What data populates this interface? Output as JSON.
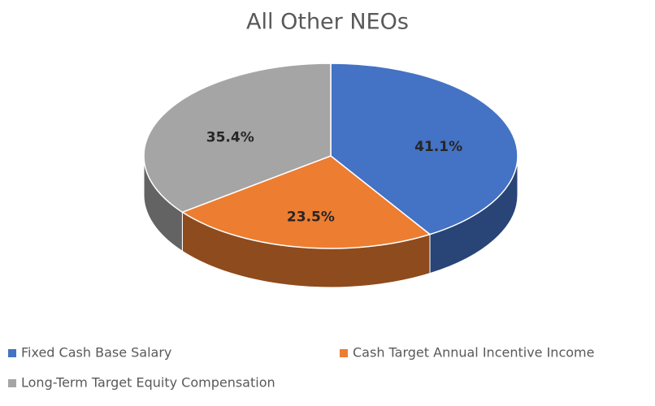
{
  "chart_data": {
    "type": "pie",
    "title": "All Other NEOs",
    "categories": [
      "Fixed Cash Base Salary",
      "Cash Target Annual Incentive Income",
      "Long-Term Target Equity Compensation"
    ],
    "values": [
      41.1,
      23.5,
      35.4
    ],
    "value_labels": [
      "41.1%",
      "23.5%",
      "35.4%"
    ],
    "colors": [
      "#4472c4",
      "#ed7d31",
      "#a5a5a5"
    ],
    "legend": "bottom"
  }
}
